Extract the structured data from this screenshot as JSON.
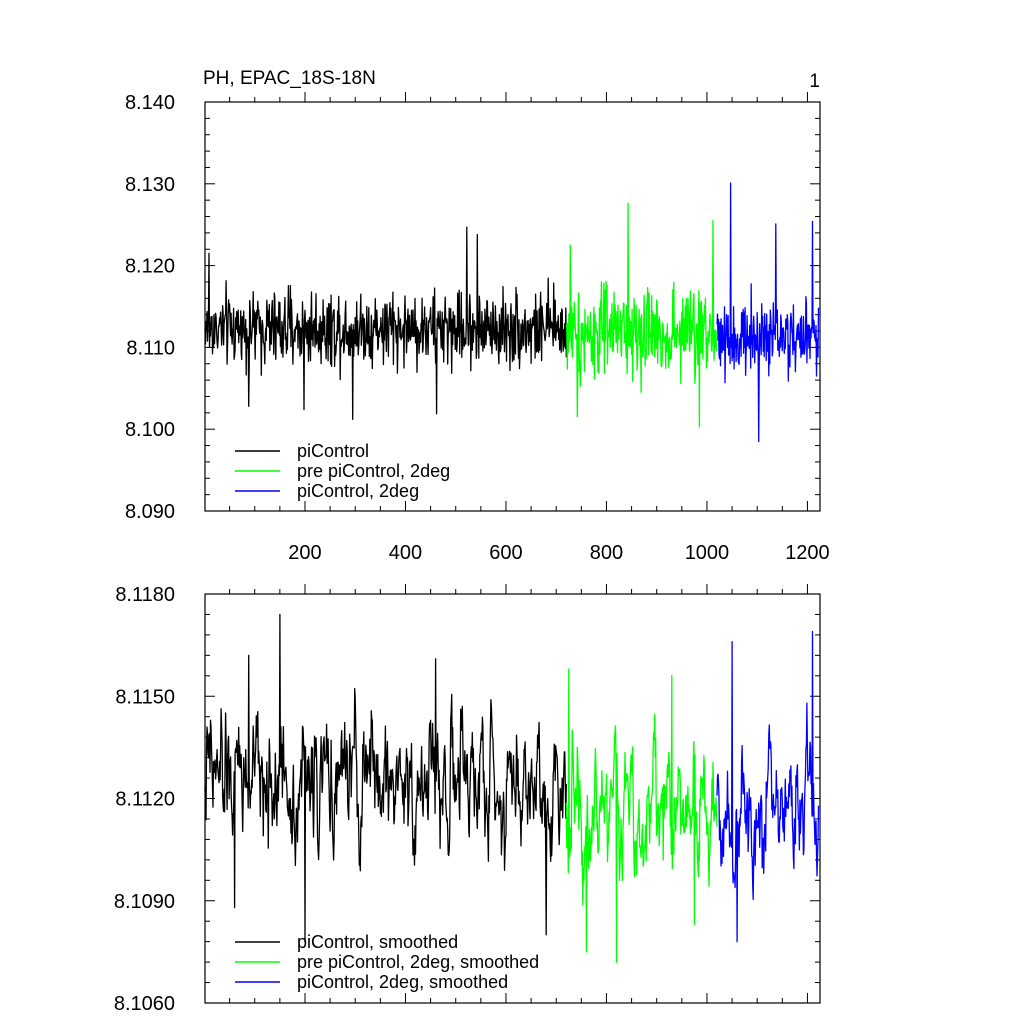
{
  "chart_data": [
    {
      "type": "line",
      "title": "PH, EPAC_18S-18N",
      "right_title": "1",
      "xlabel": "",
      "ylabel": "",
      "xlim": [
        1,
        1225
      ],
      "ylim": [
        8.09,
        8.14
      ],
      "x_ticks": [
        200,
        400,
        600,
        800,
        1000,
        1200
      ],
      "x_tick_labels": [
        "200",
        "400",
        "600",
        "800",
        "1000",
        "1200"
      ],
      "y_ticks": [
        8.09,
        8.1,
        8.11,
        8.12,
        8.13,
        8.14
      ],
      "y_tick_labels": [
        "8.090",
        "8.100",
        "8.110",
        "8.120",
        "8.130",
        "8.140"
      ],
      "grid": false,
      "legend": "bottom-left",
      "series": [
        {
          "name": "piControl",
          "color": "#000000",
          "x_range": [
            1,
            720
          ],
          "mean": 8.1123,
          "spread": 0.0032,
          "highlights": [
            [
              9,
              8.1215
            ],
            [
              88,
              8.1028
            ],
            [
              198,
              8.1024
            ],
            [
              295,
              8.1012
            ],
            [
              462,
              8.1019
            ],
            [
              522,
              8.1247
            ],
            [
              543,
              8.1238
            ]
          ]
        },
        {
          "name": "pre piControl, 2deg",
          "color": "#00ff00",
          "x_range": [
            720,
            1020
          ],
          "mean": 8.1118,
          "spread": 0.004,
          "highlights": [
            [
              728,
              8.1225
            ],
            [
              742,
              8.1015
            ],
            [
              843,
              8.1276
            ],
            [
              985,
              8.1003
            ],
            [
              1012,
              8.1255
            ]
          ]
        },
        {
          "name": "piControl, 2deg",
          "color": "#0000ff",
          "x_range": [
            1020,
            1222
          ],
          "mean": 8.1112,
          "spread": 0.0033,
          "highlights": [
            [
              1047,
              8.1301
            ],
            [
              1103,
              8.0985
            ],
            [
              1137,
              8.1251
            ],
            [
              1210,
              8.1254
            ],
            [
              1218,
              8.1065
            ]
          ]
        }
      ]
    },
    {
      "type": "line",
      "title": "",
      "xlabel": "",
      "ylabel": "",
      "xlim": [
        1,
        1225
      ],
      "ylim": [
        8.106,
        8.118
      ],
      "x_ticks": [
        200,
        400,
        600,
        800,
        1000,
        1200
      ],
      "x_tick_labels": [],
      "y_ticks": [
        8.106,
        8.109,
        8.112,
        8.115,
        8.118
      ],
      "y_tick_labels": [
        "8.1060",
        "8.1090",
        "8.1120",
        "8.1150",
        "8.1180"
      ],
      "grid": false,
      "legend": "bottom-left",
      "series": [
        {
          "name": "piControl, smoothed",
          "color": "#000000",
          "x_range": [
            1,
            720
          ],
          "mean": 8.1125,
          "spread": 0.0016,
          "highlights": [
            [
              60,
              8.1088
            ],
            [
              88,
              8.1162
            ],
            [
              150,
              8.1174
            ],
            [
              200,
              8.1078
            ],
            [
              460,
              8.1161
            ],
            [
              680,
              8.108
            ]
          ]
        },
        {
          "name": "pre piControl, 2deg, smoothed",
          "color": "#00ff00",
          "x_range": [
            720,
            1020
          ],
          "mean": 8.1118,
          "spread": 0.0017,
          "highlights": [
            [
              725,
              8.1158
            ],
            [
              760,
              8.1075
            ],
            [
              820,
              8.1072
            ],
            [
              930,
              8.1156
            ],
            [
              975,
              8.1083
            ]
          ]
        },
        {
          "name": "piControl, 2deg, smoothed",
          "color": "#0000ff",
          "x_range": [
            1020,
            1222
          ],
          "mean": 8.1118,
          "spread": 0.0015,
          "highlights": [
            [
              1050,
              8.1166
            ],
            [
              1060,
              8.1078
            ],
            [
              1210,
              8.1169
            ]
          ]
        }
      ]
    }
  ]
}
